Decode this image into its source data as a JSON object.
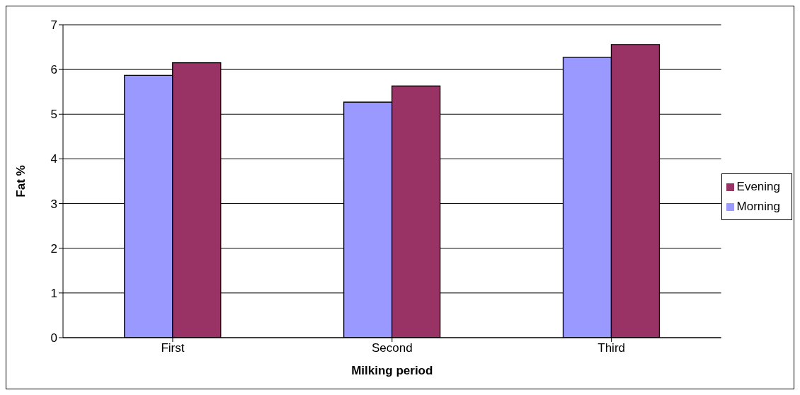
{
  "chart_data": {
    "type": "bar",
    "xlabel": "Milking period",
    "ylabel": "Fat %",
    "categories": [
      "First",
      "Second",
      "Third"
    ],
    "series": [
      {
        "name": "Morning",
        "color": "#9999ff",
        "values": [
          5.87,
          5.27,
          6.27
        ]
      },
      {
        "name": "Evening",
        "color": "#993366",
        "values": [
          6.15,
          5.63,
          6.56
        ]
      }
    ],
    "ylim": [
      0,
      7
    ],
    "yticks": [
      0,
      1,
      2,
      3,
      4,
      5,
      6,
      7
    ],
    "grid": "y",
    "legend": "right"
  }
}
